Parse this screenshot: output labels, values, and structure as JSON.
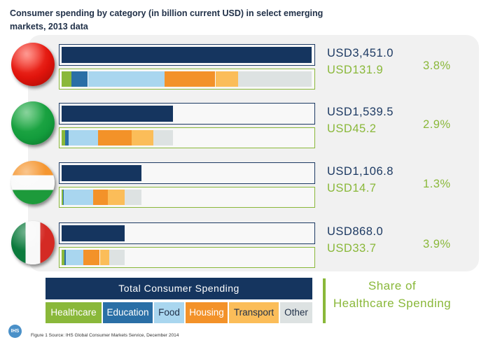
{
  "title": "Consumer spending by category (in billion current USD) in select emerging markets, 2013 data",
  "legend": {
    "total_label": "Total Consumer Spending",
    "share_label_line1": "Share of",
    "share_label_line2": "Healthcare Spending",
    "categories": [
      {
        "label": "Healthcare",
        "color": "#8ab83a",
        "text_color": "#ffffff"
      },
      {
        "label": "Education",
        "color": "#2a6fa6",
        "text_color": "#ffffff"
      },
      {
        "label": "Food",
        "color": "#a9d6ef",
        "text_color": "#1f2f47"
      },
      {
        "label": "Housing",
        "color": "#f39229",
        "text_color": "#ffffff"
      },
      {
        "label": "Transport",
        "color": "#fbbd59",
        "text_color": "#1f2f47"
      },
      {
        "label": "Other",
        "color": "#dde2e2",
        "text_color": "#1f2f47"
      }
    ]
  },
  "source": "Figure 1 Source: IHS Global Consumer Markets Service, December 2014",
  "logo_text": "IHS",
  "colors": {
    "total_bar": "#15355f",
    "healthcare_text": "#8ab83a",
    "total_text": "#1d3a63"
  },
  "rows": [
    {
      "country": "China",
      "flag_icon": "china-flag-icon",
      "total_label": "USD3,451.0",
      "healthcare_label": "USD131.9",
      "share_label": "3.8%"
    },
    {
      "country": "Brazil",
      "flag_icon": "brazil-flag-icon",
      "total_label": "USD1,539.5",
      "healthcare_label": "USD45.2",
      "share_label": "2.9%"
    },
    {
      "country": "India",
      "flag_icon": "india-flag-icon",
      "total_label": "USD1,106.8",
      "healthcare_label": "USD14.7",
      "share_label": "1.3%"
    },
    {
      "country": "Mexico",
      "flag_icon": "mexico-flag-icon",
      "total_label": "USD868.0",
      "healthcare_label": "USD33.7",
      "share_label": "3.9%"
    }
  ],
  "chart_data": {
    "type": "bar",
    "categories": [
      "China",
      "Brazil",
      "India",
      "Mexico"
    ],
    "series": [
      {
        "name": "Total Consumer Spending",
        "values": [
          3451.0,
          1539.5,
          1106.8,
          868.0
        ]
      },
      {
        "name": "Healthcare",
        "values": [
          131.9,
          45.2,
          14.7,
          33.7
        ]
      }
    ],
    "share_of_healthcare_pct": [
      3.8,
      2.9,
      1.3,
      3.9
    ],
    "category_breakdown_fraction": {
      "components": [
        "Healthcare",
        "Education",
        "Food",
        "Housing",
        "Transport",
        "Other"
      ],
      "China": [
        0.038,
        0.067,
        0.306,
        0.204,
        0.091,
        0.294
      ],
      "Brazil": [
        0.029,
        0.033,
        0.264,
        0.305,
        0.195,
        0.174
      ],
      "India": [
        0.013,
        0.017,
        0.368,
        0.18,
        0.215,
        0.207
      ],
      "Mexico": [
        0.039,
        0.028,
        0.278,
        0.26,
        0.152,
        0.243
      ]
    },
    "xlim": [
      0,
      3451.0
    ]
  }
}
